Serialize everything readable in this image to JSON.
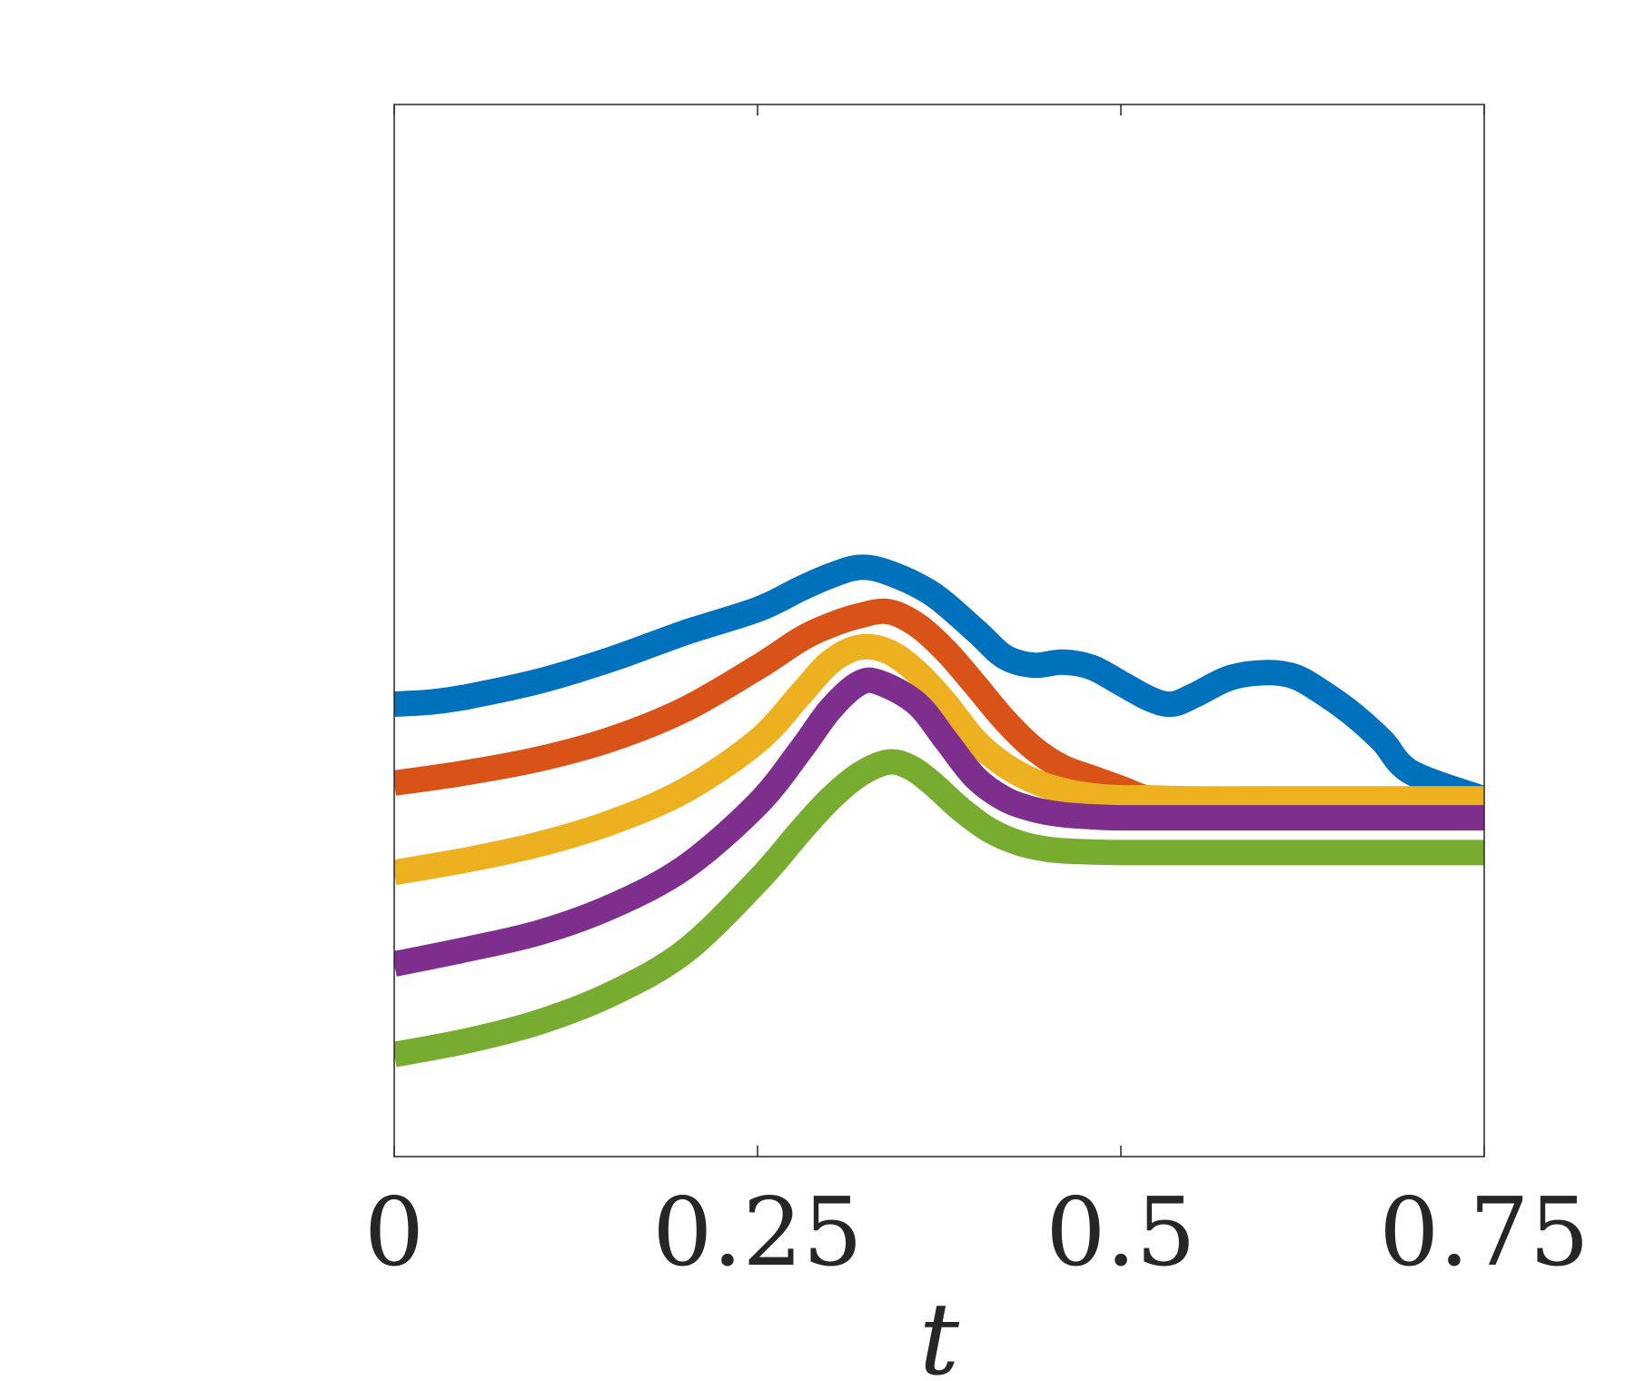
{
  "chart_data": {
    "type": "line",
    "title": "",
    "xlabel": "t",
    "ylabel": "",
    "xlim": [
      0,
      0.75
    ],
    "ylim": [
      0,
      1
    ],
    "x_ticks": [
      {
        "value": 0,
        "label": "0"
      },
      {
        "value": 0.25,
        "label": "0.25"
      },
      {
        "value": 0.5,
        "label": "0.5"
      },
      {
        "value": 0.75,
        "label": "0.75"
      }
    ],
    "grid": false,
    "legend": "none",
    "series": [
      {
        "color": "#0072BD",
        "x": [
          0,
          0.025,
          0.05,
          0.1,
          0.15,
          0.2,
          0.25,
          0.28,
          0.3,
          0.32,
          0.34,
          0.37,
          0.4,
          0.42,
          0.44,
          0.46,
          0.48,
          0.5,
          0.52,
          0.535,
          0.55,
          0.575,
          0.6,
          0.62,
          0.64,
          0.66,
          0.68,
          0.7,
          0.75
        ],
        "y": [
          0.43,
          0.432,
          0.437,
          0.452,
          0.473,
          0.498,
          0.52,
          0.54,
          0.552,
          0.56,
          0.555,
          0.535,
          0.5,
          0.475,
          0.467,
          0.47,
          0.465,
          0.45,
          0.435,
          0.43,
          0.438,
          0.455,
          0.46,
          0.456,
          0.44,
          0.42,
          0.395,
          0.365,
          0.34
        ]
      },
      {
        "color": "#D95319",
        "x": [
          0,
          0.05,
          0.1,
          0.15,
          0.2,
          0.25,
          0.28,
          0.3,
          0.32,
          0.34,
          0.36,
          0.38,
          0.4,
          0.42,
          0.44,
          0.46,
          0.48,
          0.5,
          0.52,
          0.55,
          0.6,
          0.75
        ],
        "y": [
          0.355,
          0.365,
          0.378,
          0.397,
          0.425,
          0.465,
          0.492,
          0.505,
          0.514,
          0.518,
          0.505,
          0.48,
          0.448,
          0.415,
          0.388,
          0.37,
          0.36,
          0.35,
          0.34,
          0.336,
          0.335,
          0.335
        ]
      },
      {
        "color": "#EDB120",
        "x": [
          0,
          0.05,
          0.1,
          0.15,
          0.2,
          0.25,
          0.28,
          0.3,
          0.32,
          0.34,
          0.36,
          0.38,
          0.4,
          0.42,
          0.44,
          0.46,
          0.48,
          0.5,
          0.52,
          0.55,
          0.6,
          0.75
        ],
        "y": [
          0.27,
          0.282,
          0.297,
          0.318,
          0.348,
          0.395,
          0.44,
          0.47,
          0.484,
          0.48,
          0.46,
          0.43,
          0.395,
          0.372,
          0.357,
          0.348,
          0.343,
          0.341,
          0.341,
          0.34,
          0.34,
          0.34
        ]
      },
      {
        "color": "#7E2F8E",
        "x": [
          0,
          0.05,
          0.1,
          0.15,
          0.2,
          0.25,
          0.28,
          0.3,
          0.32,
          0.335,
          0.36,
          0.38,
          0.4,
          0.42,
          0.44,
          0.46,
          0.48,
          0.5,
          0.55,
          0.6,
          0.75
        ],
        "y": [
          0.183,
          0.197,
          0.213,
          0.238,
          0.275,
          0.335,
          0.387,
          0.425,
          0.45,
          0.45,
          0.43,
          0.395,
          0.36,
          0.34,
          0.33,
          0.325,
          0.323,
          0.322,
          0.322,
          0.322,
          0.322
        ]
      },
      {
        "color": "#77AC30",
        "x": [
          0,
          0.05,
          0.1,
          0.15,
          0.2,
          0.25,
          0.28,
          0.3,
          0.32,
          0.34,
          0.355,
          0.37,
          0.39,
          0.41,
          0.43,
          0.45,
          0.47,
          0.5,
          0.55,
          0.6,
          0.75
        ],
        "y": [
          0.097,
          0.11,
          0.128,
          0.155,
          0.195,
          0.262,
          0.31,
          0.34,
          0.363,
          0.375,
          0.37,
          0.355,
          0.33,
          0.31,
          0.298,
          0.292,
          0.29,
          0.289,
          0.289,
          0.289,
          0.289
        ]
      }
    ]
  }
}
